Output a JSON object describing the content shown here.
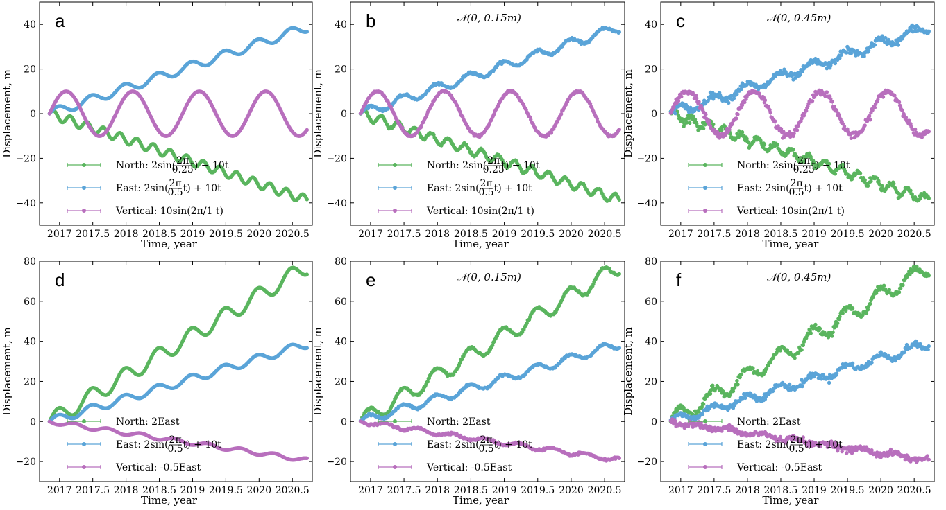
{
  "chart_data": [
    {
      "type": "scatter",
      "panel_label": "a",
      "title": "",
      "xlabel": "Time, year",
      "ylabel": "Displacement, m",
      "xlim": [
        2016.7,
        2020.8
      ],
      "ylim": [
        -50,
        50
      ],
      "xticks": [
        "2017",
        "2017.5",
        "2018",
        "2018.5",
        "2019",
        "2019.5",
        "2020",
        "2020.5"
      ],
      "yticks": [
        "40",
        "20",
        "0",
        "−20",
        "−40"
      ],
      "legend": {
        "placement": "lower-left",
        "entries": [
          "North: 2sin(2π/0.25 t) − 10t",
          "East: 2sin(2π/0.5 t) + 10t",
          "Vertical: 10sin(2π/1 t)"
        ]
      },
      "series": [
        {
          "name": "North: 2sin(2π/0.25 t) − 10t",
          "color": "#5ab55e",
          "model": "north_a",
          "noise": 0
        },
        {
          "name": "East: 2sin(2π/0.5 t) + 10t",
          "color": "#5aa4d8",
          "model": "east",
          "noise": 0
        },
        {
          "name": "Vertical: 10sin(2π/1 t)",
          "color": "#b86fbd",
          "model": "vert_a",
          "noise": 0
        }
      ],
      "x_start": 2016.85,
      "x_end": 2020.72
    },
    {
      "type": "scatter",
      "panel_label": "b",
      "title": "𝒩(0, 0.15m)",
      "xlabel": "Time, year",
      "ylabel": "Displacement, m",
      "xlim": [
        2016.7,
        2020.8
      ],
      "ylim": [
        -50,
        50
      ],
      "xticks": [
        "2017",
        "2017.5",
        "2018",
        "2018.5",
        "2019",
        "2019.5",
        "2020",
        "2020.5"
      ],
      "yticks": [
        "40",
        "20",
        "0",
        "−20",
        "−40"
      ],
      "legend": {
        "placement": "lower-left",
        "entries": [
          "North: 2sin(2π/0.25 t) − 10t",
          "East: 2sin(2π/0.5 t) + 10t",
          "Vertical: 10sin(2π/1 t)"
        ]
      },
      "series": [
        {
          "name": "North: 2sin(2π/0.25 t) − 10t",
          "color": "#5ab55e",
          "model": "north_a",
          "noise": 0.15
        },
        {
          "name": "East: 2sin(2π/0.5 t) + 10t",
          "color": "#5aa4d8",
          "model": "east",
          "noise": 0.15
        },
        {
          "name": "Vertical: 10sin(2π/1 t)",
          "color": "#b86fbd",
          "model": "vert_a",
          "noise": 0.15
        }
      ],
      "x_start": 2016.85,
      "x_end": 2020.72
    },
    {
      "type": "scatter",
      "panel_label": "c",
      "title": "𝒩(0, 0.45m)",
      "xlabel": "Time, year",
      "ylabel": "Displacement, m",
      "xlim": [
        2016.7,
        2020.8
      ],
      "ylim": [
        -50,
        50
      ],
      "xticks": [
        "2017",
        "2017.5",
        "2018",
        "2018.5",
        "2019",
        "2019.5",
        "2020",
        "2020.5"
      ],
      "yticks": [
        "40",
        "20",
        "0",
        "−20",
        "−40"
      ],
      "legend": {
        "placement": "lower-left",
        "entries": [
          "North: 2sin(2π/0.25 t) − 10t",
          "East: 2sin(2π/0.5 t) + 10t",
          "Vertical: 10sin(2π/1 t)"
        ]
      },
      "series": [
        {
          "name": "North: 2sin(2π/0.25 t) − 10t",
          "color": "#5ab55e",
          "model": "north_a",
          "noise": 0.45
        },
        {
          "name": "East: 2sin(2π/0.5 t) + 10t",
          "color": "#5aa4d8",
          "model": "east",
          "noise": 0.45
        },
        {
          "name": "Vertical: 10sin(2π/1 t)",
          "color": "#b86fbd",
          "model": "vert_a",
          "noise": 0.45
        }
      ],
      "x_start": 2016.85,
      "x_end": 2020.72
    },
    {
      "type": "scatter",
      "panel_label": "d",
      "title": "",
      "xlabel": "Time, year",
      "ylabel": "Displacement, m",
      "xlim": [
        2016.7,
        2020.8
      ],
      "ylim": [
        -30,
        80
      ],
      "xticks": [
        "2017",
        "2017.5",
        "2018",
        "2018.5",
        "2019",
        "2019.5",
        "2020",
        "2020.5"
      ],
      "yticks": [
        "80",
        "60",
        "40",
        "20",
        "0",
        "−20"
      ],
      "legend": {
        "placement": "lower-left",
        "entries": [
          "North: 2East",
          "East: 2sin(2π/0.5 t) + 10t",
          "Vertical: -0.5East"
        ]
      },
      "series": [
        {
          "name": "North: 2East",
          "color": "#5ab55e",
          "model": "north_d",
          "noise": 0
        },
        {
          "name": "East: 2sin(2π/0.5 t) + 10t",
          "color": "#5aa4d8",
          "model": "east",
          "noise": 0
        },
        {
          "name": "Vertical: -0.5East",
          "color": "#b86fbd",
          "model": "vert_d",
          "noise": 0
        }
      ],
      "x_start": 2016.85,
      "x_end": 2020.72
    },
    {
      "type": "scatter",
      "panel_label": "e",
      "title": "𝒩(0, 0.15m)",
      "xlabel": "Time, year",
      "ylabel": "Displacement, m",
      "xlim": [
        2016.7,
        2020.8
      ],
      "ylim": [
        -30,
        80
      ],
      "xticks": [
        "2017",
        "2017.5",
        "2018",
        "2018.5",
        "2019",
        "2019.5",
        "2020",
        "2020.5"
      ],
      "yticks": [
        "80",
        "60",
        "40",
        "20",
        "0",
        "−20"
      ],
      "legend": {
        "placement": "lower-left",
        "entries": [
          "North: 2East",
          "East: 2sin(2π/0.5 t) + 10t",
          "Vertical: -0.5East"
        ]
      },
      "series": [
        {
          "name": "North: 2East",
          "color": "#5ab55e",
          "model": "north_d",
          "noise": 0.15
        },
        {
          "name": "East: 2sin(2π/0.5 t) + 10t",
          "color": "#5aa4d8",
          "model": "east",
          "noise": 0.15
        },
        {
          "name": "Vertical: -0.5East",
          "color": "#b86fbd",
          "model": "vert_d",
          "noise": 0.15
        }
      ],
      "x_start": 2016.85,
      "x_end": 2020.72
    },
    {
      "type": "scatter",
      "panel_label": "f",
      "title": "𝒩(0, 0.45m)",
      "xlabel": "Time, year",
      "ylabel": "Displacement, m",
      "xlim": [
        2016.7,
        2020.8
      ],
      "ylim": [
        -30,
        80
      ],
      "xticks": [
        "2017",
        "2017.5",
        "2018",
        "2018.5",
        "2019",
        "2019.5",
        "2020",
        "2020.5"
      ],
      "yticks": [
        "80",
        "60",
        "40",
        "20",
        "0",
        "−20"
      ],
      "legend": {
        "placement": "lower-left",
        "entries": [
          "North: 2East",
          "East: 2sin(2π/0.5 t) + 10t",
          "Vertical: -0.5East"
        ]
      },
      "series": [
        {
          "name": "North: 2East",
          "color": "#5ab55e",
          "model": "north_d",
          "noise": 0.45
        },
        {
          "name": "East: 2sin(2π/0.5 t) + 10t",
          "color": "#5aa4d8",
          "model": "east",
          "noise": 0.45
        },
        {
          "name": "Vertical: -0.5East",
          "color": "#b86fbd",
          "model": "vert_d",
          "noise": 0.45
        }
      ],
      "x_start": 2016.85,
      "x_end": 2020.72
    }
  ]
}
